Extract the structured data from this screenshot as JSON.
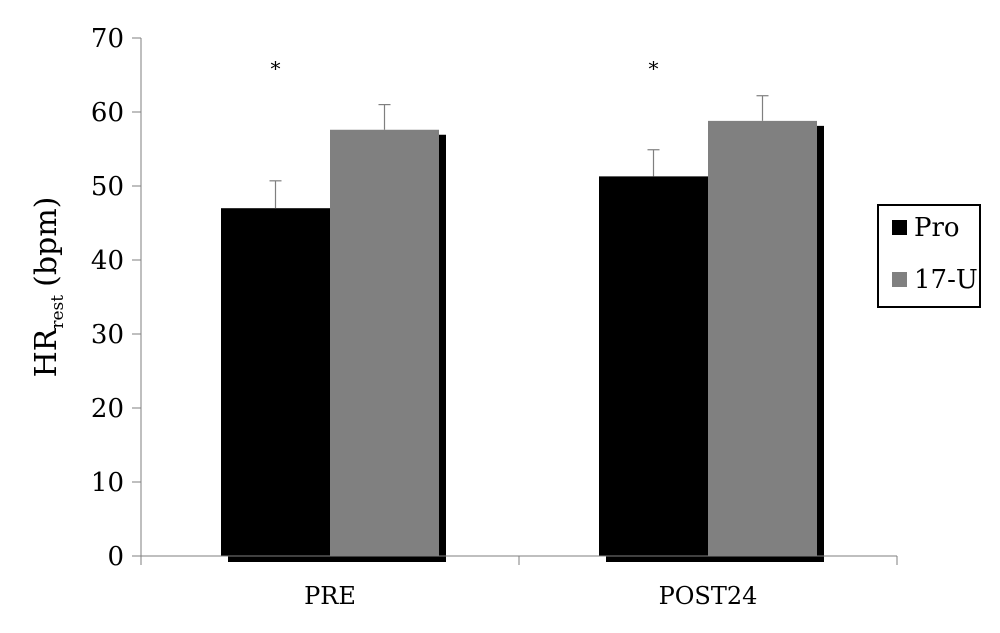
{
  "chart_data": {
    "type": "bar",
    "categories": [
      "PRE",
      "POST24"
    ],
    "series": [
      {
        "name": "Pro",
        "values": [
          47,
          51.3
        ],
        "errors": [
          3.7,
          3.6
        ],
        "color": "#000000"
      },
      {
        "name": "17-U",
        "values": [
          57.6,
          58.8
        ],
        "errors": [
          3.4,
          3.4
        ],
        "color": "#808080"
      }
    ],
    "ylabel": {
      "main": "HR",
      "subscript": "rest",
      "unit": "(bpm)"
    },
    "ylim": [
      0,
      70
    ],
    "yticks": [
      0,
      10,
      20,
      30,
      40,
      50,
      60,
      70
    ],
    "significance": [
      {
        "category": "PRE",
        "label": "*"
      },
      {
        "category": "POST24",
        "label": "*"
      }
    ],
    "legend_position": "right",
    "grid": false,
    "shadow_color": "#000000"
  }
}
